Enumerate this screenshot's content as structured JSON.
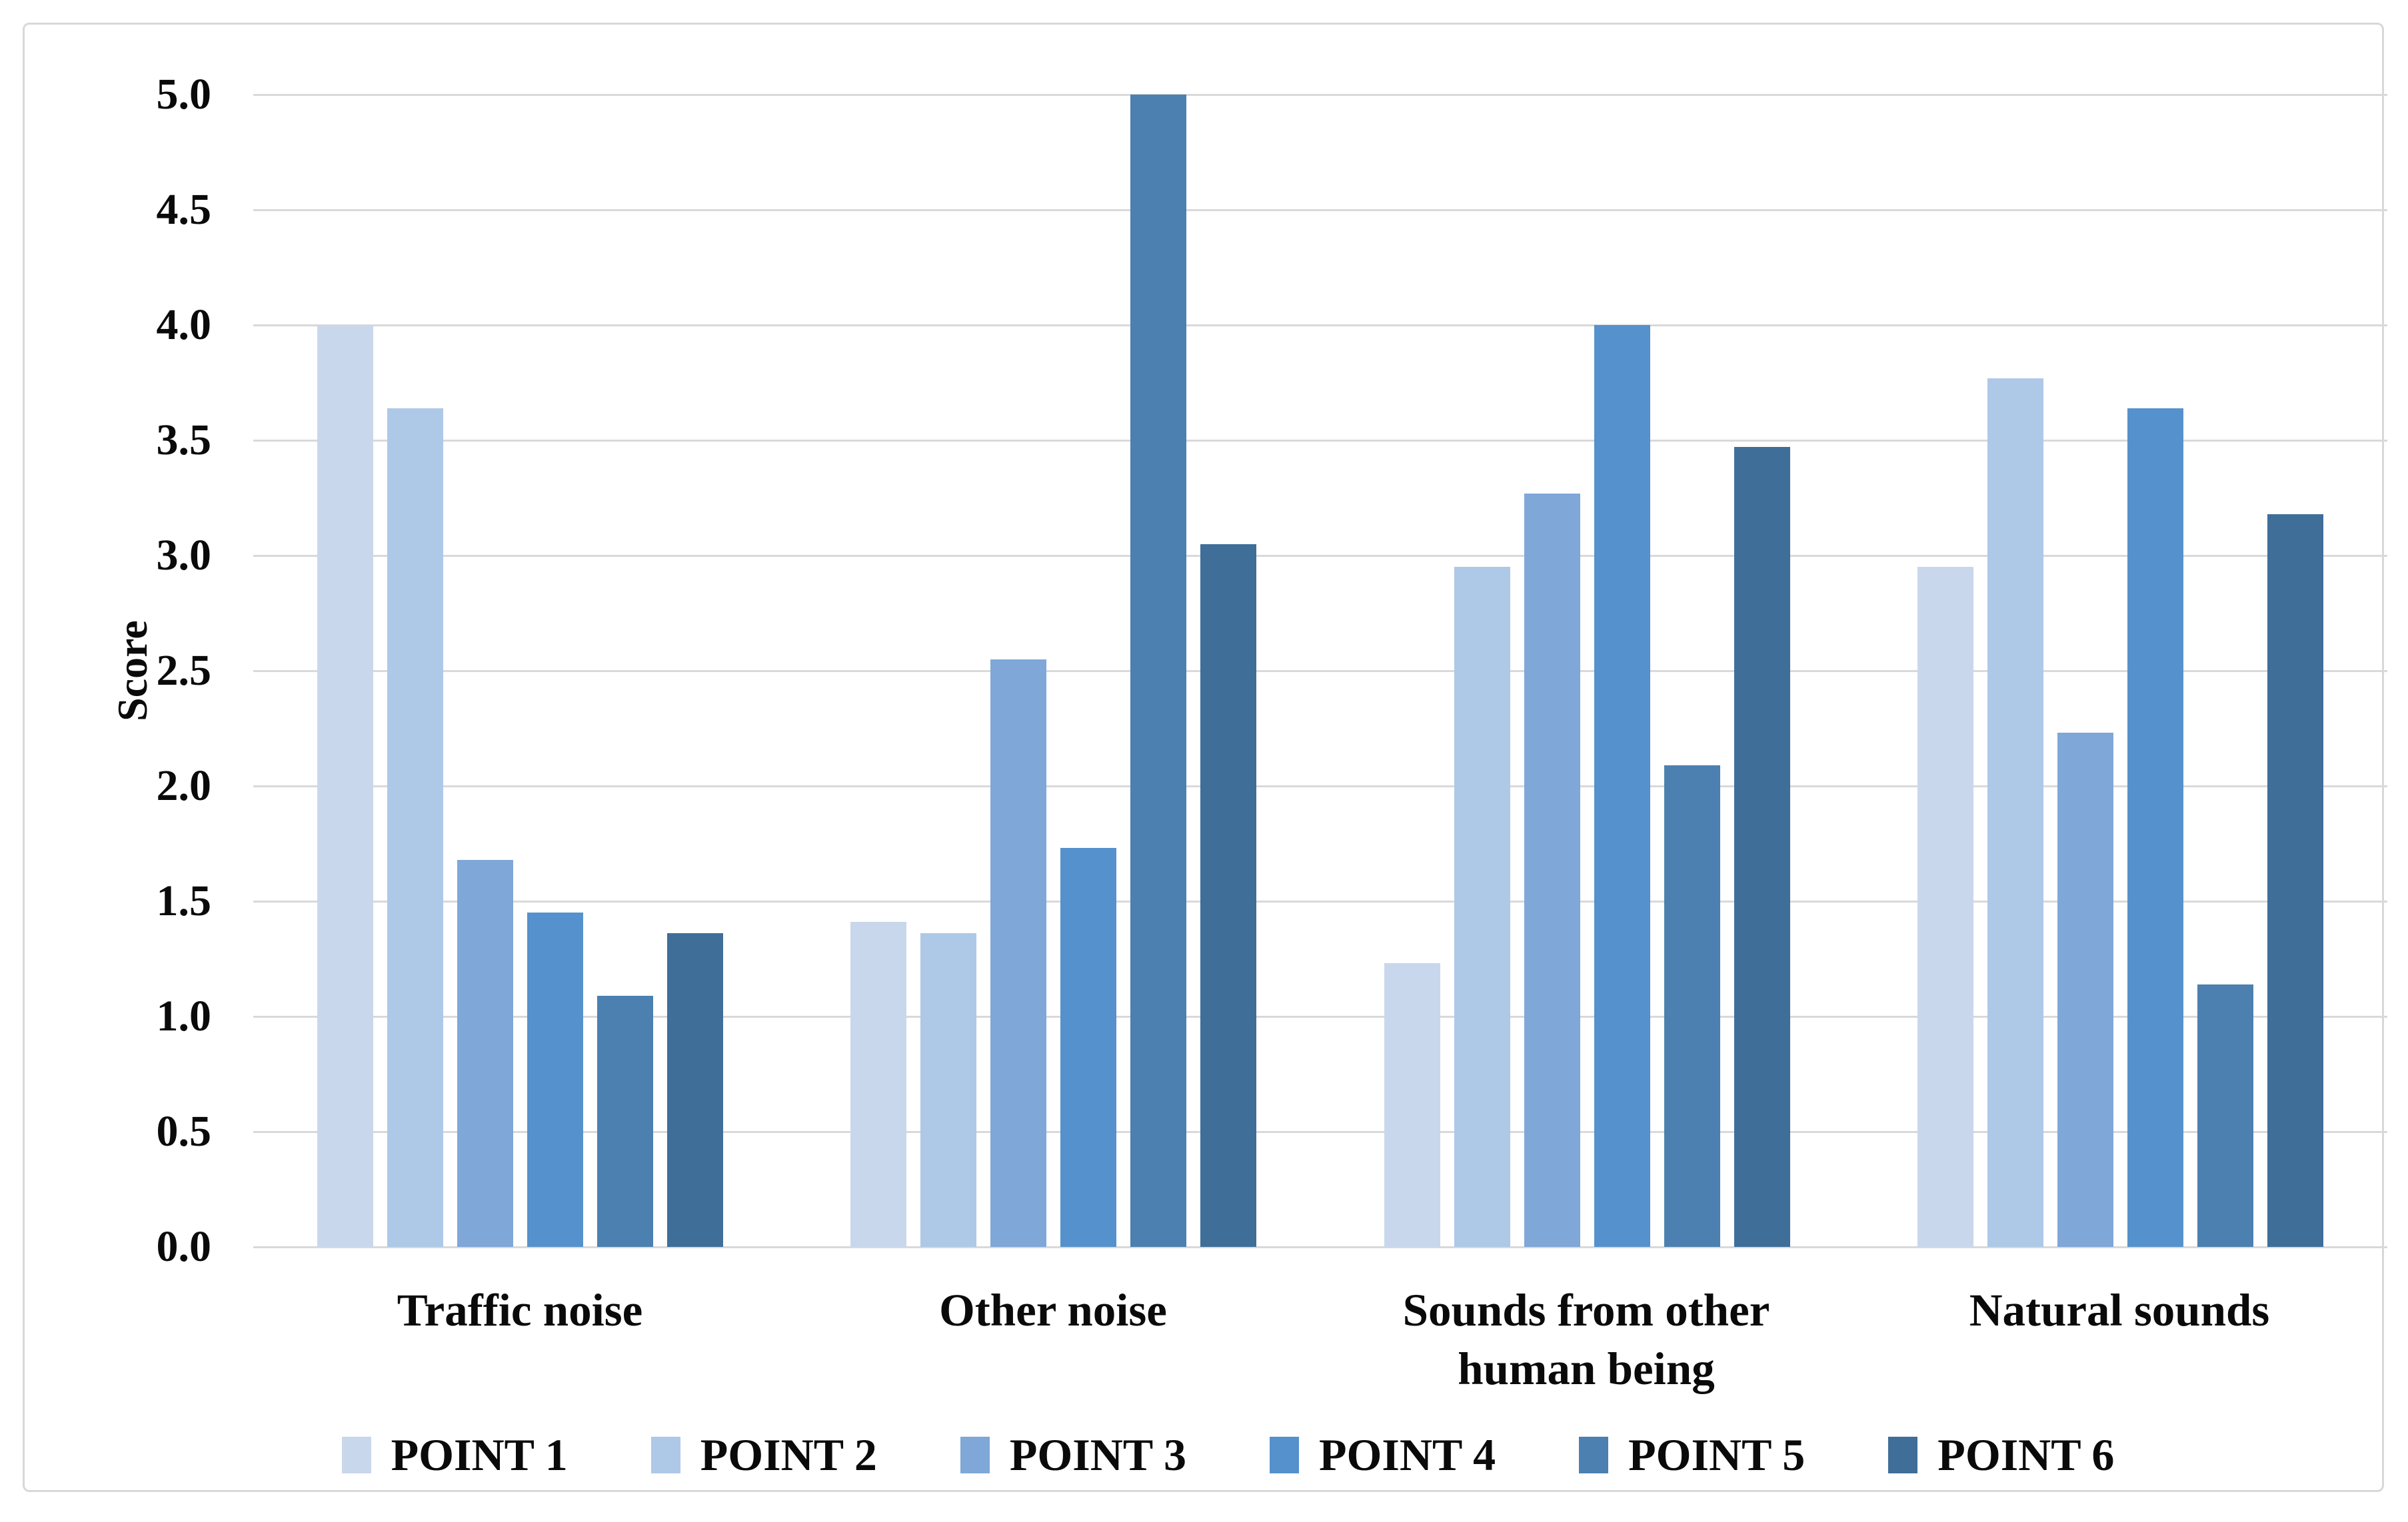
{
  "figure": {
    "background_color": "#ffffff",
    "frame_border_color": "#d8d8d8",
    "gridline_color": "#d9d9d9",
    "text_color": "#0a0a0a"
  },
  "chart_data": {
    "type": "bar",
    "title": "",
    "xlabel": "",
    "ylabel": "Score",
    "ylim": [
      0,
      5
    ],
    "ytick_step": 0.5,
    "ytick_labels": [
      "0.0",
      "0.5",
      "1.0",
      "1.5",
      "2.0",
      "2.5",
      "3.0",
      "3.5",
      "4.0",
      "4.5",
      "5.0"
    ],
    "grid": true,
    "legend_position": "bottom",
    "categories": [
      "Traffic noise",
      "Other noise",
      "Sounds from other human being",
      "Natural sounds"
    ],
    "series": [
      {
        "name": "POINT 1",
        "color": "#c9d7ec",
        "values": [
          4.0,
          1.41,
          1.23,
          2.95
        ]
      },
      {
        "name": "POINT 2",
        "color": "#aec8e7",
        "values": [
          3.64,
          1.36,
          2.95,
          3.77
        ]
      },
      {
        "name": "POINT 3",
        "color": "#7fa7d8",
        "values": [
          1.68,
          2.55,
          3.27,
          2.23
        ]
      },
      {
        "name": "POINT 4",
        "color": "#5591cc",
        "values": [
          1.45,
          1.73,
          4.0,
          3.64
        ]
      },
      {
        "name": "POINT 5",
        "color": "#4b80b0",
        "values": [
          1.09,
          5.0,
          2.09,
          1.14
        ]
      },
      {
        "name": "POINT 6",
        "color": "#3f6e99",
        "values": [
          1.36,
          3.05,
          3.47,
          3.18
        ]
      }
    ]
  }
}
